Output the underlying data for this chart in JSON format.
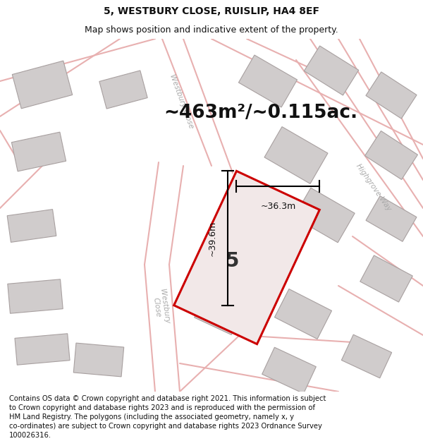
{
  "title": "5, WESTBURY CLOSE, RUISLIP, HA4 8EF",
  "subtitle": "Map shows position and indicative extent of the property.",
  "area_text": "~463m²/~0.115ac.",
  "property_number": "5",
  "dim_width": "~36.3m",
  "dim_height": "~39.6m",
  "footer_lines": [
    "Contains OS data © Crown copyright and database right 2021. This information is subject",
    "to Crown copyright and database rights 2023 and is reproduced with the permission of",
    "HM Land Registry. The polygons (including the associated geometry, namely x, y",
    "co-ordinates) are subject to Crown copyright and database rights 2023 Ordnance Survey",
    "100026316."
  ],
  "background_color": "#ffffff",
  "map_bg_color": "#f5f0f0",
  "road_color": "#e8b0b0",
  "building_color": "#d0cccc",
  "building_edge_color": "#a8a0a0",
  "property_fill": "#f2e8e8",
  "property_edge_color": "#cc0000",
  "title_fontsize": 10,
  "subtitle_fontsize": 9,
  "area_fontsize": 19,
  "property_num_fontsize": 20,
  "dim_fontsize": 9,
  "street_fontsize": 7.5,
  "footer_fontsize": 7.2
}
